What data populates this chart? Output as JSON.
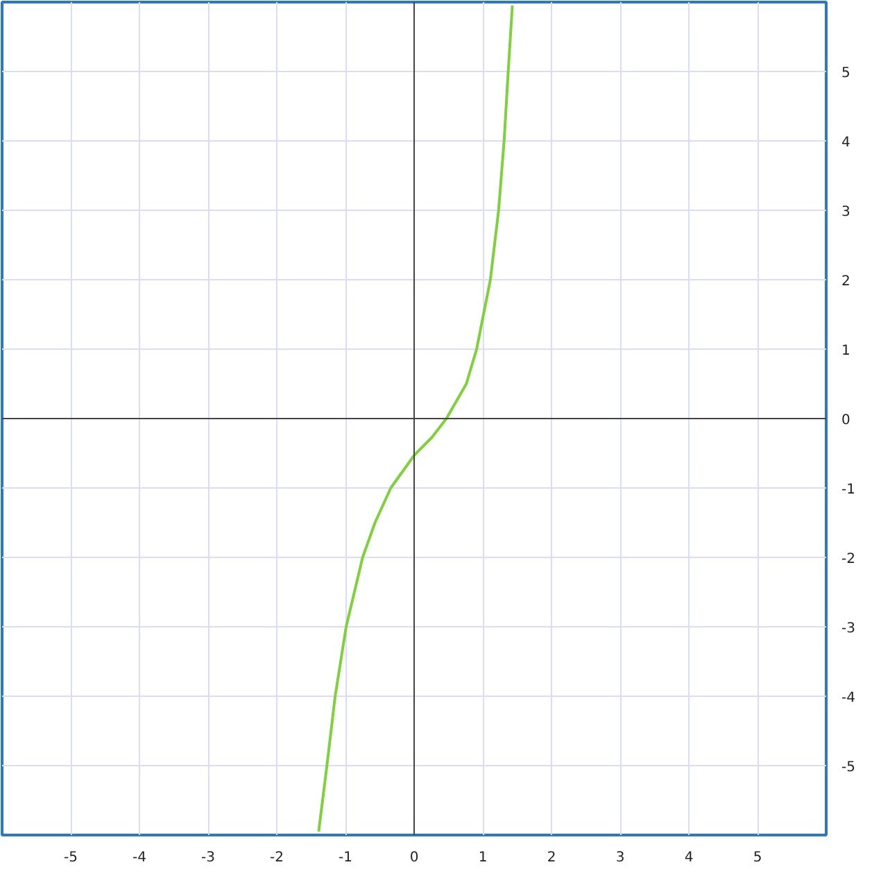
{
  "chart_data": {
    "type": "line",
    "x": [
      -1.39,
      -1.27,
      -1.15,
      -0.99,
      -0.75,
      -0.57,
      -0.34,
      0,
      0.26,
      0.47,
      0.76,
      0.91,
      1.11,
      1.23,
      1.31,
      1.37,
      1.43
    ],
    "series": [
      {
        "color": "#7fd13b",
        "values": [
          -5.95,
          -5,
          -4,
          -3,
          -2,
          -1.5,
          -1,
          -0.53,
          -0.27,
          0,
          0.5,
          1,
          2,
          3,
          4,
          5,
          5.95
        ]
      }
    ],
    "xlim": [
      -6,
      6
    ],
    "ylim": [
      -6,
      6
    ],
    "xticks": [
      -5,
      -4,
      -3,
      -2,
      -1,
      0,
      1,
      2,
      3,
      4,
      5
    ],
    "yticks": [
      -5,
      -4,
      -3,
      -2,
      -1,
      0,
      1,
      2,
      3,
      4,
      5
    ],
    "grid": true,
    "marker": "none",
    "line_style": "solid"
  }
}
